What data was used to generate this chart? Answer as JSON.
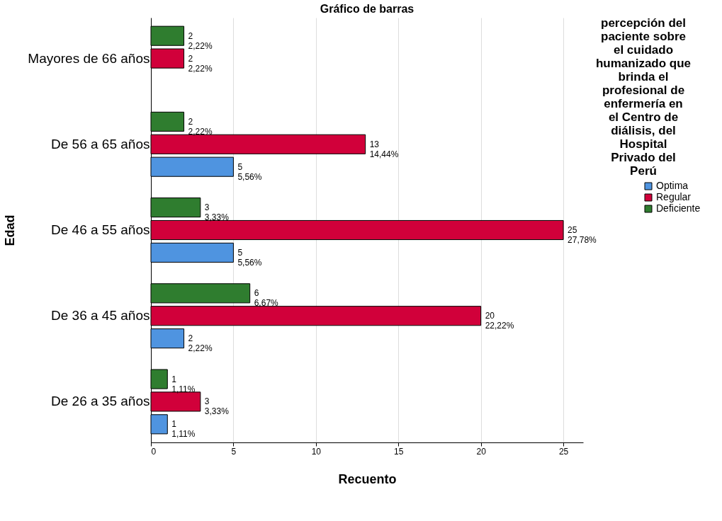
{
  "chart_data": {
    "type": "bar",
    "orientation": "horizontal",
    "title": "Gráfico de barras",
    "xlabel": "Recuento",
    "ylabel": "Edad",
    "legend_title": "percepción del paciente sobre el cuidado humanizado que brinda el profesional de enfermería en el Centro de diálisis, del Hospital Privado del Perú",
    "categories": [
      "Mayores de 66 años",
      "De 56 a 65 años",
      "De 46 a 55 años",
      "De 36 a 45 años",
      "De 26 a 35 años"
    ],
    "series": [
      {
        "name": "Optima",
        "color": "#4f94e0",
        "values": [
          null,
          5,
          5,
          2,
          1
        ],
        "value_labels": [
          null,
          "5\n5,56%",
          "5\n5,56%",
          "2\n2,22%",
          "1\n1,11%"
        ]
      },
      {
        "name": "Regular",
        "color": "#d1003a",
        "values": [
          2,
          13,
          25,
          20,
          3
        ],
        "value_labels": [
          "2\n2,22%",
          "13\n14,44%",
          "25\n27,78%",
          "20\n22,22%",
          "3\n3,33%"
        ]
      },
      {
        "name": "Deficiente",
        "color": "#2f7d2f",
        "values": [
          2,
          2,
          3,
          6,
          1
        ],
        "value_labels": [
          "2\n2,22%",
          "2\n2,22%",
          "3\n3,33%",
          "6\n6,67%",
          "1\n1,11%"
        ]
      }
    ],
    "xlim": [
      0,
      26.2
    ],
    "xticks": [
      0,
      5,
      10,
      15,
      20,
      25
    ],
    "grid": "x",
    "legend": "right"
  }
}
